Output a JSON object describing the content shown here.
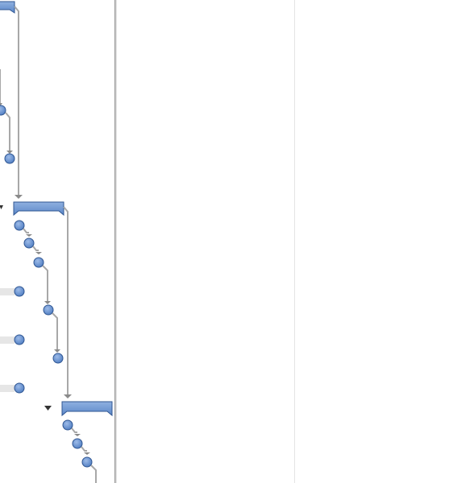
{
  "gantt": {
    "colors": {
      "bar_fill": "#5b87c8",
      "bar_fill_light": "#8fb0e0",
      "bar_stroke": "#2f5692",
      "connector": "#a8a8a8",
      "arrow": "#8a8a8a",
      "progress_track": "#e6e6e6",
      "collapse_triangle": "#333333"
    },
    "icons": [
      "collapse-triangle-icon",
      "arrow-down-icon"
    ]
  }
}
